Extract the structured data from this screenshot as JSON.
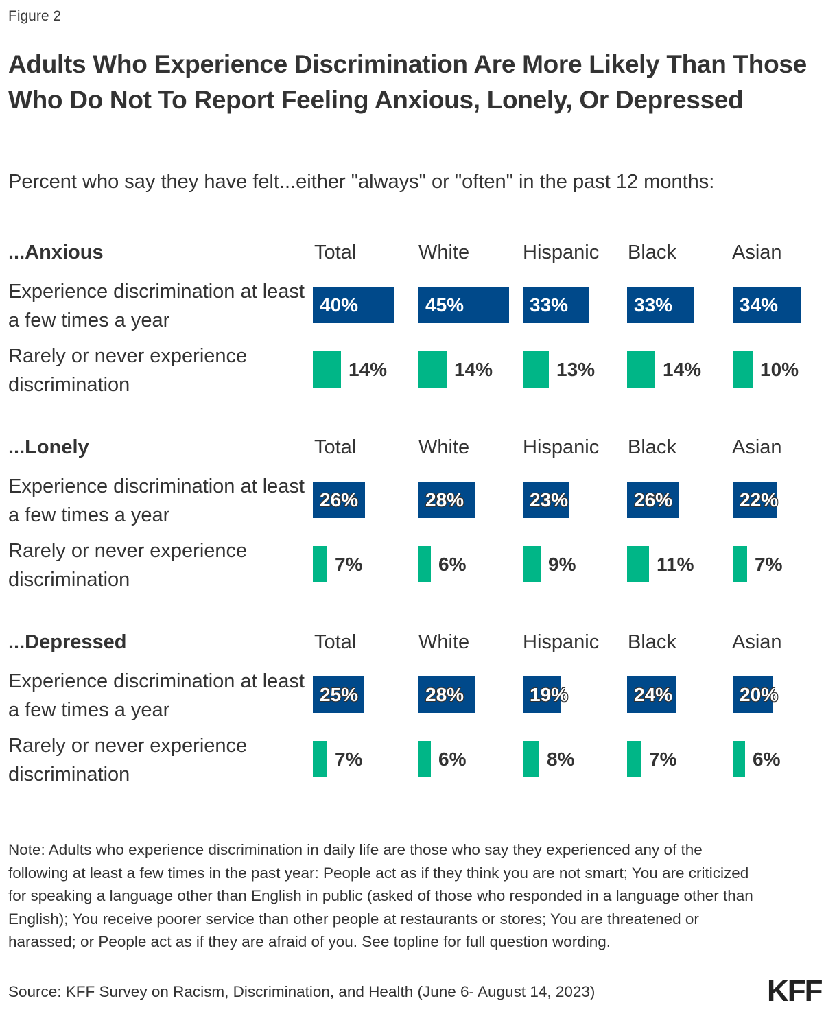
{
  "figure_label": "Figure 2",
  "title": "Adults Who Experience Discrimination Are More Likely Than Those Who Do Not To Report Feeling Anxious, Lonely, Or Depressed",
  "subtitle": "Percent who say they have felt...either \"always\" or \"often\" in the past 12 months:",
  "note": "Note: Adults who experience discrimination in daily life are those who say they experienced any of the following at least a few times in the past year: People act as if they think you are not smart; You are criticized for speaking a language other than English in public (asked of those who responded in a language other than English); You receive poorer service than other people at restaurants or stores; You are threatened or harassed; or People act as if they are afraid of you. See topline for full question wording.",
  "source": "Source: KFF Survey on Racism, Discrimination, and Health (June 6- August 14, 2023)",
  "logo": "KFF",
  "colors": {
    "experience": "#00498a",
    "rarely": "#00b687",
    "text": "#333333"
  },
  "chart_data": {
    "type": "bar",
    "orientation": "horizontal",
    "title": "Adults Who Experience Discrimination Are More Likely Than Those Who Do Not To Report Feeling Anxious, Lonely, Or Depressed",
    "subtitle": "Percent who say they have felt...either \"always\" or \"often\" in the past 12 months:",
    "categories": [
      "Total",
      "White",
      "Hispanic",
      "Black",
      "Asian"
    ],
    "row_labels": [
      "Experience discrimination at least a few times a year",
      "Rarely or never experience discrimination"
    ],
    "unit": "%",
    "xlim": [
      0,
      100
    ],
    "panels": [
      {
        "name": "...Anxious",
        "series": [
          {
            "name": "Experience discrimination at least a few times a year",
            "values": [
              40,
              45,
              33,
              33,
              34
            ],
            "labels": [
              "40%",
              "45%",
              "33%",
              "33%",
              "34%"
            ]
          },
          {
            "name": "Rarely or never experience discrimination",
            "values": [
              14,
              14,
              13,
              14,
              10
            ],
            "labels": [
              "14%",
              "14%",
              "13%",
              "14%",
              "10%"
            ]
          }
        ]
      },
      {
        "name": "...Lonely",
        "series": [
          {
            "name": "Experience discrimination at least a few times a year",
            "values": [
              26,
              28,
              23,
              26,
              22
            ],
            "labels": [
              "26%",
              "28%",
              "23%",
              "26%",
              "22%"
            ]
          },
          {
            "name": "Rarely or never experience discrimination",
            "values": [
              7,
              6,
              9,
              11,
              7
            ],
            "labels": [
              "7%",
              "6%",
              "9%",
              "11%",
              "7%"
            ]
          }
        ]
      },
      {
        "name": "...Depressed",
        "series": [
          {
            "name": "Experience discrimination at least a few times a year",
            "values": [
              25,
              28,
              19,
              24,
              20
            ],
            "labels": [
              "25%",
              "28%",
              "19%",
              "24%",
              "20%"
            ]
          },
          {
            "name": "Rarely or never experience discrimination",
            "values": [
              7,
              6,
              8,
              7,
              6
            ],
            "labels": [
              "7%",
              "6%",
              "8%",
              "7%",
              "6%"
            ]
          }
        ]
      }
    ]
  }
}
